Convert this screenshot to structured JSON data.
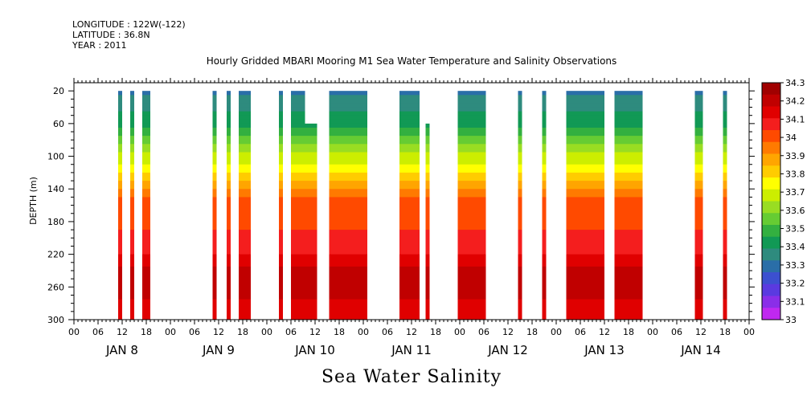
{
  "chart_data": {
    "type": "heatmap",
    "title": "Hourly Gridded MBARI Mooring M1 Sea Water Temperature and Salinity Observations",
    "header": {
      "longitude": "LONGITUDE : 122W(-122)",
      "latitude": "LATITUDE : 36.8N",
      "year": "YEAR : 2011"
    },
    "xlabel": "Sea Water Salinity",
    "ylabel": "DEPTH (m)",
    "x_range_hours": [
      0,
      168
    ],
    "y_range": [
      300,
      10
    ],
    "y_ticks": [
      20,
      60,
      100,
      140,
      180,
      220,
      260,
      300
    ],
    "x_ticks_hours": [
      0,
      6,
      12,
      18,
      24,
      30,
      36,
      42,
      48,
      54,
      60,
      66,
      72,
      78,
      84,
      90,
      96,
      102,
      108,
      114,
      120,
      126,
      132,
      138,
      144,
      150,
      156,
      162,
      168
    ],
    "x_tick_labels": [
      "00",
      "06",
      "12",
      "18",
      "00",
      "06",
      "12",
      "18",
      "00",
      "06",
      "12",
      "18",
      "00",
      "06",
      "12",
      "18",
      "00",
      "06",
      "12",
      "18",
      "00",
      "06",
      "12",
      "18",
      "00",
      "06",
      "12",
      "18",
      "00"
    ],
    "day_labels": [
      {
        "hour": 12,
        "label": "JAN  8"
      },
      {
        "hour": 36,
        "label": "JAN  9"
      },
      {
        "hour": 60,
        "label": "JAN 10"
      },
      {
        "hour": 84,
        "label": "JAN 11"
      },
      {
        "hour": 108,
        "label": "JAN 12"
      },
      {
        "hour": 132,
        "label": "JAN 13"
      },
      {
        "hour": 156,
        "label": "JAN 14"
      }
    ],
    "colorbar": {
      "levels": [
        "34.3",
        "34.2",
        "34.1",
        "34",
        "33.9",
        "33.8",
        "33.7",
        "33.6",
        "33.5",
        "33.4",
        "33.3",
        "33.2",
        "33.1",
        "33"
      ],
      "colors": [
        "#a00000",
        "#c00000",
        "#e00000",
        "#f41e1e",
        "#ff4a00",
        "#ff7a00",
        "#ffa500",
        "#ffcc00",
        "#ffff00",
        "#ccee00",
        "#99dd22",
        "#66cc33",
        "#33b040",
        "#119955",
        "#2e8b7e",
        "#2a6ea8",
        "#3c50d0",
        "#5a3ae0",
        "#8a2ee8",
        "#c028f0"
      ]
    },
    "columns": [
      {
        "start": 11,
        "end": 12,
        "top": 20
      },
      {
        "start": 14,
        "end": 15,
        "top": 20
      },
      {
        "start": 17,
        "end": 19,
        "top": 20
      },
      {
        "start": 34.5,
        "end": 35.5,
        "top": 20
      },
      {
        "start": 38,
        "end": 39,
        "top": 20
      },
      {
        "start": 41,
        "end": 44,
        "top": 20
      },
      {
        "start": 51,
        "end": 52,
        "top": 20
      },
      {
        "start": 54,
        "end": 57.5,
        "top": 20
      },
      {
        "start": 57.5,
        "end": 60.5,
        "top": 60
      },
      {
        "start": 63.5,
        "end": 73,
        "top": 20
      },
      {
        "start": 81,
        "end": 86,
        "top": 20
      },
      {
        "start": 87.5,
        "end": 88.5,
        "top": 60
      },
      {
        "start": 95.5,
        "end": 102.5,
        "top": 20
      },
      {
        "start": 110.5,
        "end": 111.5,
        "top": 20
      },
      {
        "start": 116.5,
        "end": 117.5,
        "top": 20
      },
      {
        "start": 122.5,
        "end": 132,
        "top": 20
      },
      {
        "start": 134.5,
        "end": 141.5,
        "top": 20
      },
      {
        "start": 154.5,
        "end": 156.5,
        "top": 20
      },
      {
        "start": 161.5,
        "end": 162.5,
        "top": 20
      }
    ],
    "profile": [
      {
        "depth": 20,
        "value": 33.32
      },
      {
        "depth": 40,
        "value": 33.38
      },
      {
        "depth": 60,
        "value": 33.45
      },
      {
        "depth": 80,
        "value": 33.58
      },
      {
        "depth": 100,
        "value": 33.7
      },
      {
        "depth": 120,
        "value": 33.83
      },
      {
        "depth": 140,
        "value": 33.95
      },
      {
        "depth": 150,
        "value": 34.05
      },
      {
        "depth": 200,
        "value": 34.12
      },
      {
        "depth": 220,
        "value": 34.18
      },
      {
        "depth": 240,
        "value": 34.28
      },
      {
        "depth": 270,
        "value": 34.31
      },
      {
        "depth": 280,
        "value": 34.22
      },
      {
        "depth": 300,
        "value": 34.18
      }
    ]
  }
}
